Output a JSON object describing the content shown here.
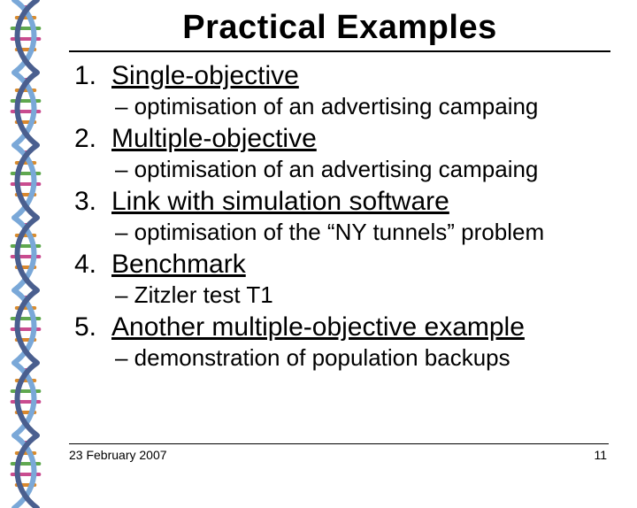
{
  "title": "Practical Examples",
  "items": [
    {
      "num": "1.",
      "title": "Single-objective",
      "sub": "– optimisation of an advertising campaing"
    },
    {
      "num": "2.",
      "title": "Multiple-objective",
      "sub": "– optimisation of an advertising campaing"
    },
    {
      "num": "3.",
      "title": "Link with simulation software",
      "sub": "– optimisation of the “NY tunnels” problem"
    },
    {
      "num": "4.",
      "title": "Benchmark",
      "sub": "– Zitzler test T1"
    },
    {
      "num": "5.",
      "title": "Another multiple-objective example",
      "sub": "– demonstration of population backups"
    }
  ],
  "footer": {
    "date": "23 February 2007",
    "page": "11"
  },
  "dna": {
    "strand_color_a": "#7aa8d8",
    "strand_color_b": "#4a5f8f",
    "rung_colors": [
      "#d94f8f",
      "#d98c2e",
      "#5fa84f",
      "#c94c8f",
      "#d9882e",
      "#58a04c"
    ]
  },
  "styles": {
    "title_fontsize": 38,
    "item_title_fontsize": 30,
    "sub_fontsize": 26,
    "footer_fontsize": 14,
    "text_color": "#000000",
    "background_color": "#ffffff"
  }
}
